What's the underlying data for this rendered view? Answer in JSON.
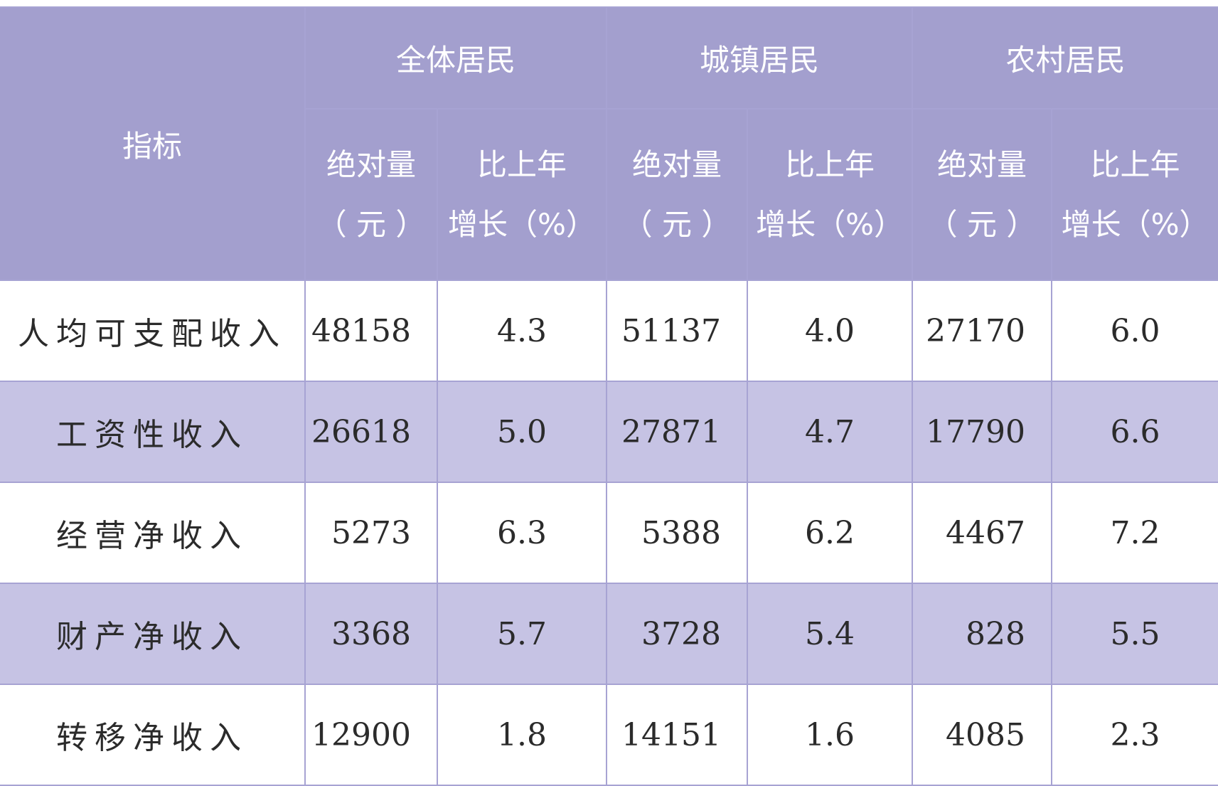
{
  "table": {
    "corner": "指标",
    "groups": [
      "全体居民",
      "城镇居民",
      "农村居民"
    ],
    "subheaders": [
      [
        "绝对量",
        "（ 元 ）"
      ],
      [
        "比上年",
        "增长（%）"
      ],
      [
        "绝对量",
        "（ 元 ）"
      ],
      [
        "比上年",
        "增长（%）"
      ],
      [
        "绝对量",
        "（ 元 ）"
      ],
      [
        "比上年",
        "增长（%）"
      ]
    ],
    "rows": [
      [
        "人均可支配收入",
        "48158",
        "4.3",
        "51137",
        "4.0",
        "27170",
        "6.0"
      ],
      [
        "工资性收入",
        "26618",
        "5.0",
        "27871",
        "4.7",
        "17790",
        "6.6"
      ],
      [
        "经营净收入",
        "5273",
        "6.3",
        "5388",
        "6.2",
        "4467",
        "7.2"
      ],
      [
        "财产净收入",
        "3368",
        "5.7",
        "3728",
        "5.4",
        "828",
        "5.5"
      ],
      [
        "转移净收入",
        "12900",
        "1.8",
        "14151",
        "1.6",
        "4085",
        "2.3"
      ]
    ]
  }
}
